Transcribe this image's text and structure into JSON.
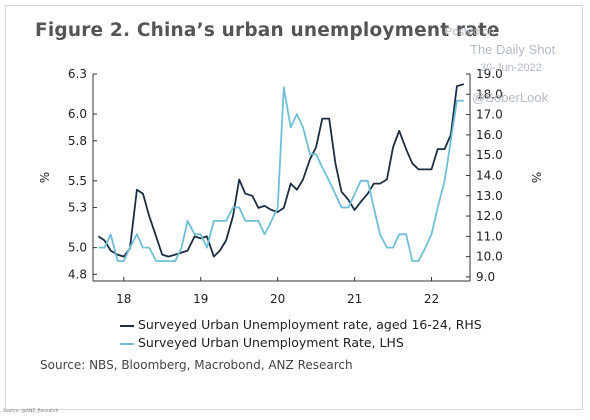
{
  "chart_data": {
    "type": "line",
    "title": "Figure 2. China’s urban unemployment rate",
    "source": "Source: NBS, Bloomberg, Macrobond, ANZ Research",
    "source_small": "Source: @ANZ_Research",
    "left_axis": {
      "label": "%",
      "ticks": [
        "6.3",
        "6.0",
        "5.8",
        "5.5",
        "5.3",
        "5.0",
        "4.8"
      ],
      "range": [
        4.75,
        6.3
      ]
    },
    "right_axis": {
      "label": "%",
      "ticks": [
        "19.0",
        "18.0",
        "17.0",
        "16.0",
        "15.0",
        "14.0",
        "13.0",
        "12.0",
        "11.0",
        "10.0",
        "9.0"
      ],
      "range": [
        8.8,
        19.0
      ]
    },
    "x_ticks": [
      {
        "label": "18",
        "t": 2018.0
      },
      {
        "label": "19",
        "t": 2019.0
      },
      {
        "label": "20",
        "t": 2020.0
      },
      {
        "label": "21",
        "t": 2021.0
      },
      {
        "label": "22",
        "t": 2022.0
      }
    ],
    "x_range": [
      2017.6,
      2022.5
    ],
    "grid": false,
    "legend_position": "bottom",
    "series": [
      {
        "name": "Surveyed Urban Unemployment rate, aged 16-24, RHS",
        "axis": "right",
        "color": "#1a2d42",
        "points": [
          [
            2017.67,
            11.0
          ],
          [
            2017.75,
            10.8
          ],
          [
            2017.83,
            10.3
          ],
          [
            2017.92,
            10.1
          ],
          [
            2018.0,
            10.0
          ],
          [
            2018.08,
            10.4
          ],
          [
            2018.17,
            13.3
          ],
          [
            2018.25,
            13.1
          ],
          [
            2018.33,
            12.0
          ],
          [
            2018.42,
            11.0
          ],
          [
            2018.5,
            10.1
          ],
          [
            2018.58,
            10.0
          ],
          [
            2018.67,
            10.1
          ],
          [
            2018.75,
            10.2
          ],
          [
            2018.83,
            10.3
          ],
          [
            2018.92,
            11.0
          ],
          [
            2019.0,
            10.9
          ],
          [
            2019.08,
            11.0
          ],
          [
            2019.17,
            10.0
          ],
          [
            2019.25,
            10.3
          ],
          [
            2019.33,
            10.8
          ],
          [
            2019.42,
            12.0
          ],
          [
            2019.5,
            13.8
          ],
          [
            2019.58,
            13.1
          ],
          [
            2019.67,
            13.0
          ],
          [
            2019.75,
            12.4
          ],
          [
            2019.83,
            12.5
          ],
          [
            2019.92,
            12.3
          ],
          [
            2020.0,
            12.2
          ],
          [
            2020.08,
            12.4
          ],
          [
            2020.17,
            13.6
          ],
          [
            2020.25,
            13.3
          ],
          [
            2020.33,
            13.8
          ],
          [
            2020.42,
            14.8
          ],
          [
            2020.5,
            15.4
          ],
          [
            2020.58,
            16.8
          ],
          [
            2020.67,
            16.8
          ],
          [
            2020.75,
            14.6
          ],
          [
            2020.83,
            13.2
          ],
          [
            2020.92,
            12.8
          ],
          [
            2021.0,
            12.3
          ],
          [
            2021.08,
            12.7
          ],
          [
            2021.17,
            13.1
          ],
          [
            2021.25,
            13.6
          ],
          [
            2021.33,
            13.6
          ],
          [
            2021.42,
            13.8
          ],
          [
            2021.5,
            15.4
          ],
          [
            2021.58,
            16.2
          ],
          [
            2021.67,
            15.3
          ],
          [
            2021.75,
            14.6
          ],
          [
            2021.83,
            14.3
          ],
          [
            2021.92,
            14.3
          ],
          [
            2022.0,
            14.3
          ],
          [
            2022.08,
            15.3
          ],
          [
            2022.17,
            15.3
          ],
          [
            2022.25,
            16.0
          ],
          [
            2022.33,
            18.4
          ],
          [
            2022.42,
            18.5
          ]
        ]
      },
      {
        "name": "Surveyed Urban Unemployment Rate, LHS",
        "axis": "left",
        "color": "#6fbfd9",
        "points": [
          [
            2017.67,
            5.0
          ],
          [
            2017.75,
            5.0
          ],
          [
            2017.83,
            5.1
          ],
          [
            2017.92,
            4.9
          ],
          [
            2018.0,
            4.9
          ],
          [
            2018.08,
            5.0
          ],
          [
            2018.17,
            5.1
          ],
          [
            2018.25,
            5.0
          ],
          [
            2018.33,
            5.0
          ],
          [
            2018.42,
            4.9
          ],
          [
            2018.5,
            4.9
          ],
          [
            2018.58,
            4.9
          ],
          [
            2018.67,
            4.9
          ],
          [
            2018.75,
            5.0
          ],
          [
            2018.83,
            5.2
          ],
          [
            2018.92,
            5.1
          ],
          [
            2019.0,
            5.1
          ],
          [
            2019.08,
            5.0
          ],
          [
            2019.17,
            5.2
          ],
          [
            2019.25,
            5.2
          ],
          [
            2019.33,
            5.2
          ],
          [
            2019.42,
            5.3
          ],
          [
            2019.5,
            5.3
          ],
          [
            2019.58,
            5.2
          ],
          [
            2019.67,
            5.2
          ],
          [
            2019.75,
            5.2
          ],
          [
            2019.83,
            5.1
          ],
          [
            2019.92,
            5.2
          ],
          [
            2020.0,
            5.3
          ],
          [
            2020.08,
            6.2
          ],
          [
            2020.17,
            5.9
          ],
          [
            2020.25,
            6.0
          ],
          [
            2020.33,
            5.9
          ],
          [
            2020.42,
            5.7
          ],
          [
            2020.5,
            5.7
          ],
          [
            2020.58,
            5.6
          ],
          [
            2020.67,
            5.5
          ],
          [
            2020.75,
            5.4
          ],
          [
            2020.83,
            5.3
          ],
          [
            2020.92,
            5.3
          ],
          [
            2021.0,
            5.4
          ],
          [
            2021.08,
            5.5
          ],
          [
            2021.17,
            5.5
          ],
          [
            2021.25,
            5.3
          ],
          [
            2021.33,
            5.1
          ],
          [
            2021.42,
            5.0
          ],
          [
            2021.5,
            5.0
          ],
          [
            2021.58,
            5.1
          ],
          [
            2021.67,
            5.1
          ],
          [
            2021.75,
            4.9
          ],
          [
            2021.83,
            4.9
          ],
          [
            2021.92,
            5.0
          ],
          [
            2022.0,
            5.1
          ],
          [
            2022.08,
            5.3
          ],
          [
            2022.17,
            5.5
          ],
          [
            2022.25,
            5.8
          ],
          [
            2022.33,
            6.1
          ],
          [
            2022.42,
            6.1
          ]
        ]
      }
    ]
  },
  "watermark": {
    "line1": "Posted on",
    "line2": "The Daily Shot",
    "line3": "30-Jun-2022",
    "line4": "@SoberLook"
  }
}
